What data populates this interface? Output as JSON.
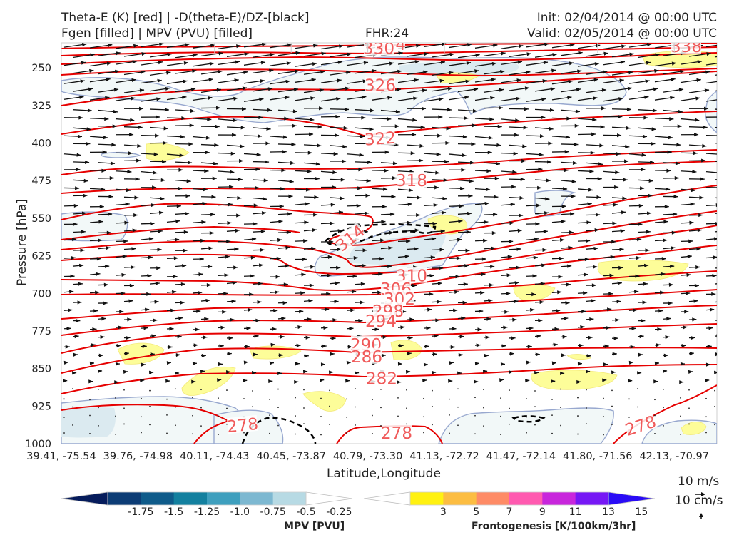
{
  "header": {
    "title_line1": "Theta-E (K) [red] | -D(theta-E)/DZ-[black]",
    "title_line2": "Fgen [filled] | MPV (PVU) [filled]",
    "fhr": "FHR:24",
    "init": "Init: 02/04/2014 @ 00:00 UTC",
    "valid": "Valid: 02/05/2014 @ 00:00 UTC"
  },
  "chart_data": {
    "type": "cross-section",
    "xlabel": "Latitude,Longitude",
    "ylabel": "Pressure [hPa]",
    "y_scale": "pressure (inverted)",
    "ylim": [
      1000,
      200
    ],
    "y_ticks": [
      "250",
      "325",
      "400",
      "475",
      "550",
      "625",
      "700",
      "775",
      "850",
      "925",
      "1000"
    ],
    "x_ticks": [
      "39.41, -75.54",
      "39.76, -74.98",
      "40.11, -74.43",
      "40.45, -73.87",
      "40.79, -73.30",
      "41.13, -72.72",
      "41.47, -72.14",
      "41.80, -71.56",
      "42.13, -70.97"
    ],
    "theta_e_contours": {
      "color": "#e60000",
      "label_color": "#f05a5a",
      "levels": [
        278,
        282,
        286,
        290,
        294,
        298,
        302,
        306,
        310,
        314,
        318,
        322,
        326,
        330,
        334,
        338
      ],
      "labels": [
        {
          "text": "334",
          "x": 0.0,
          "y": 203
        },
        {
          "text": "330",
          "x": 0.0,
          "y": 211
        },
        {
          "text": "338",
          "x": 0.0,
          "y": 207
        },
        {
          "text": "326",
          "x": 0.0,
          "y": 285
        },
        {
          "text": "322",
          "x": 0.0,
          "y": 391
        },
        {
          "text": "318",
          "x": 0.0,
          "y": 475
        },
        {
          "text": "314",
          "x": 0.0,
          "y": 590
        },
        {
          "text": "310",
          "x": 0.0,
          "y": 665
        },
        {
          "text": "306",
          "x": 0.0,
          "y": 691
        },
        {
          "text": "302",
          "x": 0.0,
          "y": 711
        },
        {
          "text": "298",
          "x": 0.0,
          "y": 735
        },
        {
          "text": "294",
          "x": 0.0,
          "y": 755
        },
        {
          "text": "290",
          "x": 0.0,
          "y": 802
        },
        {
          "text": "286",
          "x": 0.0,
          "y": 826
        },
        {
          "text": "282",
          "x": 0.0,
          "y": 870
        },
        {
          "text": "278",
          "x": 0.0,
          "y": 963
        },
        {
          "text": "278",
          "x": 0.0,
          "y": 979
        },
        {
          "text": "278",
          "x": 0.0,
          "y": 964
        }
      ]
    },
    "mpv_colorbar": {
      "label": "MPV [PVU]",
      "ticks": [
        "-1.75",
        "-1.5",
        "-1.25",
        "-1.0",
        "-0.75",
        "-0.5",
        "-0.25"
      ],
      "colors": [
        "#061c5c",
        "#0c3c75",
        "#0f5b8a",
        "#13809f",
        "#3e9fbe",
        "#7db8d1",
        "#b7dae4",
        "#ffffff"
      ]
    },
    "fgen_colorbar": {
      "label": "Frontogenesis [K/100km/3hr]",
      "ticks": [
        "3",
        "5",
        "7",
        "9",
        "11",
        "13",
        "15"
      ],
      "colors": [
        "#ffffff",
        "#fff111",
        "#fcbd42",
        "#fe8b66",
        "#ff5ab0",
        "#c826dc",
        "#7617f5",
        "#2a0cf6"
      ]
    },
    "wind_key": {
      "horizontal": "10 m/s",
      "vertical": "10 cm/s"
    }
  }
}
